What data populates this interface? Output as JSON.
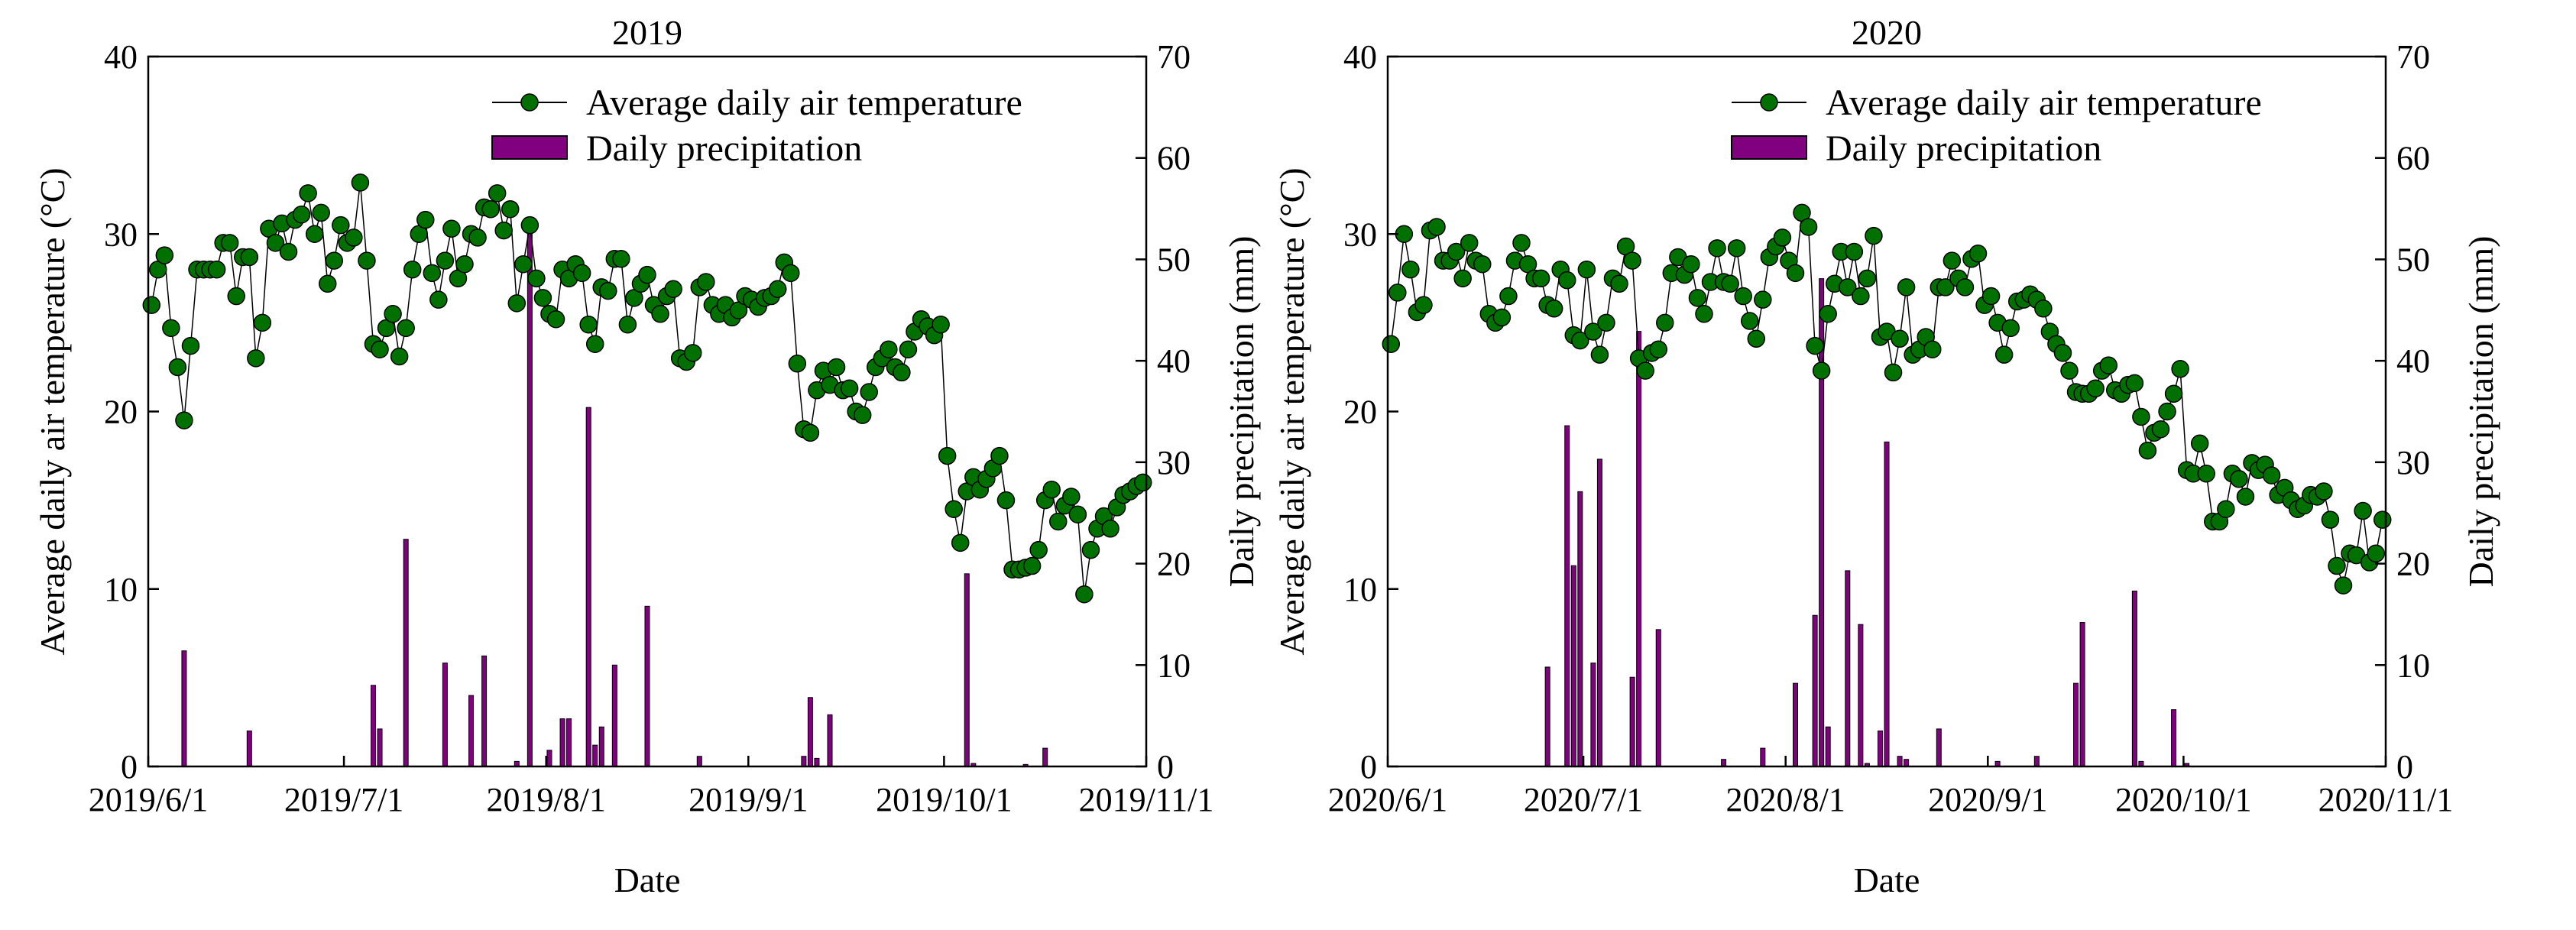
{
  "chart_data": [
    {
      "type": "line+bar",
      "title": "2019",
      "xlabel": "Date",
      "ylabel_left": "Average daily air temperature (°C)",
      "ylabel_right": "Daily precipitation (mm)",
      "ylim_left": [
        0,
        40
      ],
      "ylim_right": [
        0,
        70
      ],
      "yticks_left": [
        "0",
        "10",
        "20",
        "30",
        "40"
      ],
      "yticks_right": [
        "0",
        "10",
        "20",
        "30",
        "40",
        "50",
        "60",
        "70"
      ],
      "xticks": [
        "2019/6/1",
        "2019/7/1",
        "2019/8/1",
        "2019/9/1",
        "2019/10/1",
        "2019/11/1"
      ],
      "xtick_days": [
        0,
        30,
        61,
        92,
        122,
        153
      ],
      "days": 153,
      "legend": [
        "Average daily air temperature",
        "Daily precipitation"
      ],
      "legend_position": "top-right",
      "temperature": [
        26,
        28,
        28.8,
        24.7,
        22.5,
        19.5,
        23.7,
        28,
        28,
        28,
        28,
        29.5,
        29.5,
        26.5,
        28.7,
        28.7,
        23,
        25,
        30.3,
        29.5,
        30.6,
        29,
        30.8,
        31.1,
        32.3,
        30,
        31.2,
        27.2,
        28.5,
        30.5,
        29.5,
        29.8,
        32.9,
        28.5,
        23.8,
        23.5,
        24.7,
        25.5,
        23.1,
        24.7,
        28,
        30,
        30.8,
        27.8,
        26.3,
        28.5,
        30.3,
        27.5,
        28.3,
        30,
        29.8,
        31.5,
        31.4,
        32.3,
        30.2,
        31.4,
        26.1,
        28.3,
        30.5,
        27.5,
        26.4,
        25.5,
        25.2,
        28,
        27.5,
        28.3,
        27.8,
        24.9,
        23.8,
        27,
        26.8,
        28.6,
        28.6,
        24.9,
        26.4,
        27.2,
        27.7,
        26,
        25.5,
        26.5,
        26.9,
        23,
        22.8,
        23.3,
        27,
        27.3,
        26,
        25.5,
        26,
        25.3,
        25.7,
        26.5,
        26.3,
        25.9,
        26.4,
        26.5,
        26.9,
        28.4,
        27.8,
        22.7,
        19,
        18.8,
        21.2,
        22.3,
        21.5,
        22.5,
        21.2,
        21.3,
        20,
        19.8,
        21.1,
        22.5,
        23,
        23.5,
        22.5,
        22.2,
        23.5,
        24.5,
        25.2,
        24.8,
        24.3,
        24.9,
        17.5,
        14.5,
        12.6,
        15.5,
        16.3,
        15.6,
        16.2,
        16.8,
        17.5,
        15,
        11.1,
        11.1,
        11.2,
        11.3,
        12.2,
        15,
        15.6,
        13.8,
        14.7,
        15.2,
        14.2,
        9.7,
        12.2,
        13.4,
        14.1,
        13.4,
        14.6,
        15.3,
        15.5,
        15.8,
        16
      ],
      "precipitation": [
        [
          5,
          11.4
        ],
        [
          15,
          3.5
        ],
        [
          34,
          8
        ],
        [
          35,
          3.7
        ],
        [
          39,
          22.4
        ],
        [
          45,
          10.2
        ],
        [
          49,
          7
        ],
        [
          51,
          10.9
        ],
        [
          56,
          0.5
        ],
        [
          58,
          53.4
        ],
        [
          61,
          1.6
        ],
        [
          63,
          4.7
        ],
        [
          64,
          4.7
        ],
        [
          67,
          35.4
        ],
        [
          68,
          2.1
        ],
        [
          69,
          3.9
        ],
        [
          71,
          10
        ],
        [
          76,
          15.8
        ],
        [
          84,
          1
        ],
        [
          100,
          1
        ],
        [
          101,
          6.8
        ],
        [
          102,
          0.8
        ],
        [
          104,
          5.1
        ],
        [
          125,
          19
        ],
        [
          126,
          0.3
        ],
        [
          134,
          0.2
        ],
        [
          137,
          1.8
        ]
      ]
    },
    {
      "type": "line+bar",
      "title": "2020",
      "xlabel": "Date",
      "ylabel_left": "Average daily air temperature (°C)",
      "ylabel_right": "Daily precipitation (mm)",
      "ylim_left": [
        0,
        40
      ],
      "ylim_right": [
        0,
        70
      ],
      "yticks_left": [
        "0",
        "10",
        "20",
        "30",
        "40"
      ],
      "yticks_right": [
        "0",
        "10",
        "20",
        "30",
        "40",
        "50",
        "60",
        "70"
      ],
      "xticks": [
        "2020/6/1",
        "2020/7/1",
        "2020/8/1",
        "2020/9/1",
        "2020/10/1",
        "2020/11/1"
      ],
      "xtick_days": [
        0,
        30,
        61,
        92,
        122,
        153
      ],
      "days": 153,
      "legend": [
        "Average daily air temperature",
        "Daily precipitation"
      ],
      "legend_position": "top-right",
      "temperature": [
        23.8,
        26.7,
        30,
        28,
        25.6,
        26,
        30.2,
        30.4,
        28.5,
        28.5,
        29,
        27.5,
        29.5,
        28.5,
        28.3,
        25.5,
        25,
        25.3,
        26.5,
        28.5,
        29.5,
        28.3,
        27.5,
        27.5,
        26,
        25.8,
        28,
        27.4,
        24.3,
        24,
        28,
        24.5,
        23.2,
        25,
        27.5,
        27.2,
        29.3,
        28.5,
        23,
        22.3,
        23.3,
        23.5,
        25,
        27.8,
        28.7,
        27.7,
        28.3,
        26.4,
        25.5,
        27.3,
        29.2,
        27.3,
        27.2,
        29.2,
        26.5,
        25.1,
        24.1,
        26.3,
        28.7,
        29.3,
        29.8,
        28.5,
        27.8,
        31.2,
        30.4,
        23.7,
        22.3,
        25.5,
        27.2,
        29,
        27,
        29,
        26.5,
        27.5,
        29.9,
        24.2,
        24.5,
        22.2,
        24.1,
        27,
        23.2,
        23.5,
        24.2,
        23.5,
        27,
        27,
        28.5,
        27.5,
        27,
        28.6,
        28.9,
        26,
        26.5,
        25,
        23.2,
        24.7,
        26.2,
        26.3,
        26.6,
        26.3,
        25.8,
        24.5,
        23.8,
        23.3,
        22.3,
        21.1,
        21,
        21,
        21.3,
        22.3,
        22.6,
        21.2,
        21,
        21.5,
        21.6,
        19.7,
        17.8,
        18.8,
        19,
        20,
        21,
        22.4,
        16.7,
        16.5,
        18.2,
        16.5,
        13.8,
        13.8,
        14.5,
        16.5,
        16.2,
        15.2,
        17.1,
        16.7,
        17,
        16.4,
        15.3,
        15.7,
        15,
        14.5,
        14.7,
        15.3,
        15.2,
        15.5,
        13.9,
        11.3,
        10.2,
        12,
        11.9,
        14.4,
        11.5,
        12,
        13.9
      ],
      "precipitation": [
        [
          24,
          9.8
        ],
        [
          27,
          33.6
        ],
        [
          28,
          19.8
        ],
        [
          29,
          27.1
        ],
        [
          31,
          10.2
        ],
        [
          32,
          30.3
        ],
        [
          37,
          8.8
        ],
        [
          38,
          42.9
        ],
        [
          41,
          13.5
        ],
        [
          51,
          0.7
        ],
        [
          57,
          1.8
        ],
        [
          62,
          8.2
        ],
        [
          65,
          14.9
        ],
        [
          66,
          48.1
        ],
        [
          67,
          3.9
        ],
        [
          70,
          19.3
        ],
        [
          72,
          14
        ],
        [
          73,
          0.3
        ],
        [
          75,
          3.5
        ],
        [
          76,
          32
        ],
        [
          78,
          1
        ],
        [
          79,
          0.7
        ],
        [
          84,
          3.7
        ],
        [
          93,
          0.5
        ],
        [
          99,
          1
        ],
        [
          105,
          8.2
        ],
        [
          106,
          14.2
        ],
        [
          114,
          17.3
        ],
        [
          115,
          0.5
        ],
        [
          120,
          5.6
        ],
        [
          122,
          0.3
        ]
      ]
    }
  ],
  "colors": {
    "marker": "#007000",
    "bar": "#800080",
    "line": "#000000"
  }
}
